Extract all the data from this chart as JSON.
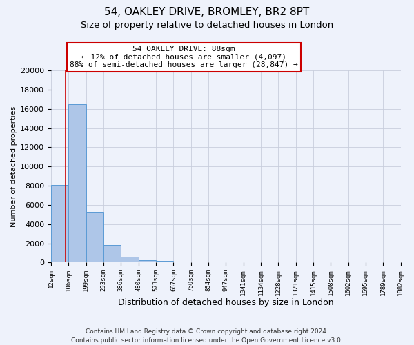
{
  "title": "54, OAKLEY DRIVE, BROMLEY, BR2 8PT",
  "subtitle": "Size of property relative to detached houses in London",
  "xlabel": "Distribution of detached houses by size in London",
  "ylabel": "Number of detached properties",
  "bin_edges": [
    12,
    106,
    199,
    293,
    386,
    480,
    573,
    667,
    760,
    854,
    947,
    1041,
    1134,
    1228,
    1321,
    1415,
    1508,
    1602,
    1695,
    1789,
    1882
  ],
  "bar_heights": [
    8100,
    16500,
    5300,
    1800,
    600,
    280,
    200,
    100,
    50,
    30,
    20,
    15,
    10,
    8,
    6,
    5,
    4,
    3,
    2,
    1
  ],
  "bar_color": "#aec6e8",
  "bar_edgecolor": "#5b9bd5",
  "property_size": 88,
  "red_line_color": "#cc0000",
  "annotation_title": "54 OAKLEY DRIVE: 88sqm",
  "annotation_line1": "← 12% of detached houses are smaller (4,097)",
  "annotation_line2": "88% of semi-detached houses are larger (28,847) →",
  "footer_line1": "Contains HM Land Registry data © Crown copyright and database right 2024.",
  "footer_line2": "Contains public sector information licensed under the Open Government Licence v3.0.",
  "ylim": [
    0,
    20000
  ],
  "yticks": [
    0,
    2000,
    4000,
    6000,
    8000,
    10000,
    12000,
    14000,
    16000,
    18000,
    20000
  ],
  "background_color": "#eef2fb",
  "grid_color": "#c8cedd",
  "title_fontsize": 11,
  "subtitle_fontsize": 9.5
}
